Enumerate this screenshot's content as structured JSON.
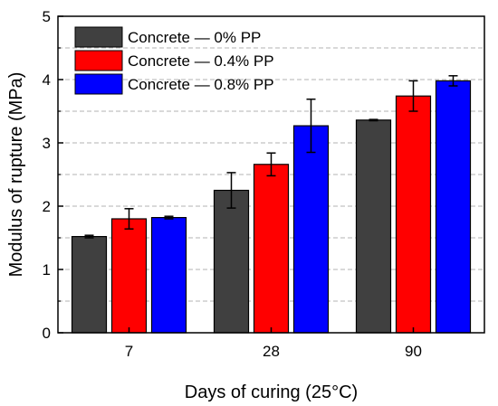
{
  "chart_data": {
    "type": "bar",
    "categories": [
      "7",
      "28",
      "90"
    ],
    "series": [
      {
        "name": "Concrete — 0% PP",
        "color": "#404040",
        "values": [
          1.52,
          2.25,
          3.36
        ],
        "errors": [
          0.02,
          0.28,
          0.01
        ]
      },
      {
        "name": "Concrete — 0.4% PP",
        "color": "#ff0000",
        "values": [
          1.8,
          2.66,
          3.74
        ],
        "errors": [
          0.16,
          0.18,
          0.24
        ]
      },
      {
        "name": "Concrete — 0.8% PP",
        "color": "#0000ff",
        "values": [
          1.82,
          3.27,
          3.98
        ],
        "errors": [
          0.02,
          0.42,
          0.08
        ]
      }
    ],
    "xlabel": "Days of curing (25°C)",
    "ylabel": "Modulus of rupture (MPa)",
    "ylim": [
      0,
      5
    ],
    "yticks": [
      "0",
      "1",
      "2",
      "3",
      "4",
      "5"
    ],
    "grid": "horizontal dashed at 0.5 intervals",
    "legend_position": "top-left",
    "error_bars": true
  }
}
